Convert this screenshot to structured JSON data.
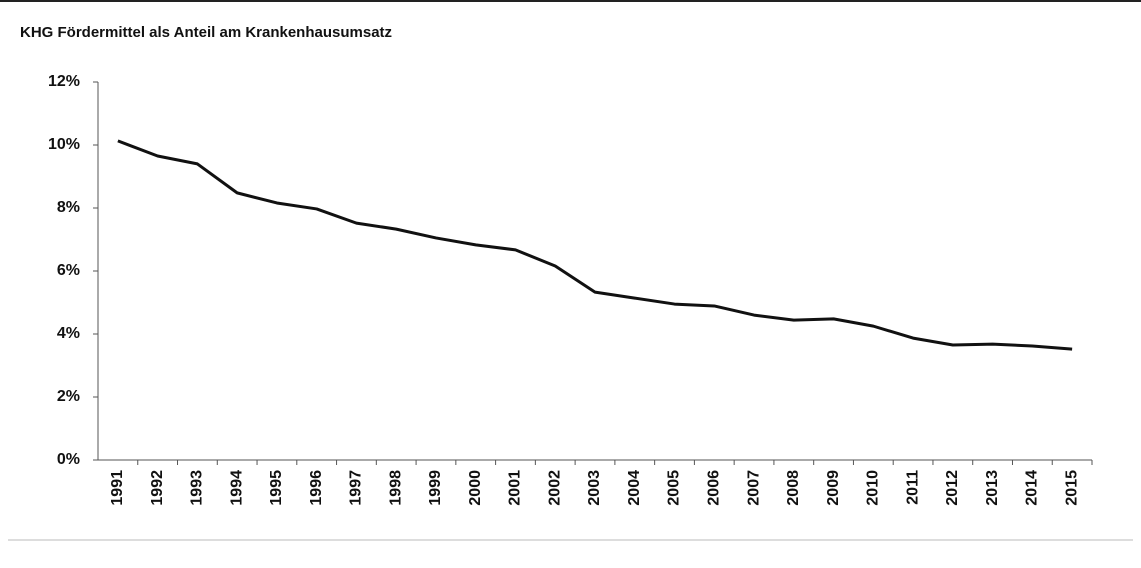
{
  "chart_data": {
    "type": "line",
    "title": "KHG Fördermittel als Anteil am Krankenhausumsatz",
    "categories": [
      "1991",
      "1992",
      "1993",
      "1994",
      "1995",
      "1996",
      "1997",
      "1998",
      "1999",
      "2000",
      "2001",
      "2002",
      "2003",
      "2004",
      "2005",
      "2006",
      "2007",
      "2008",
      "2009",
      "2010",
      "2011",
      "2012",
      "2013",
      "2014",
      "2015"
    ],
    "series": [
      {
        "name": "KHG Fördermittel",
        "color": "#111111",
        "values": [
          10.13,
          9.65,
          9.4,
          8.48,
          8.16,
          7.97,
          7.52,
          7.33,
          7.05,
          6.83,
          6.67,
          6.16,
          5.33,
          5.14,
          4.95,
          4.89,
          4.6,
          4.44,
          4.48,
          4.25,
          3.87,
          3.65,
          3.68,
          3.62,
          3.52
        ]
      }
    ],
    "ylim": [
      0,
      12
    ],
    "yticks": [
      {
        "value": 0,
        "label": "0%"
      },
      {
        "value": 2,
        "label": "2%"
      },
      {
        "value": 4,
        "label": "4%"
      },
      {
        "value": 6,
        "label": "6%"
      },
      {
        "value": 8,
        "label": "8%"
      },
      {
        "value": 10,
        "label": "10%"
      },
      {
        "value": 12,
        "label": "12%"
      }
    ],
    "grid": false
  }
}
